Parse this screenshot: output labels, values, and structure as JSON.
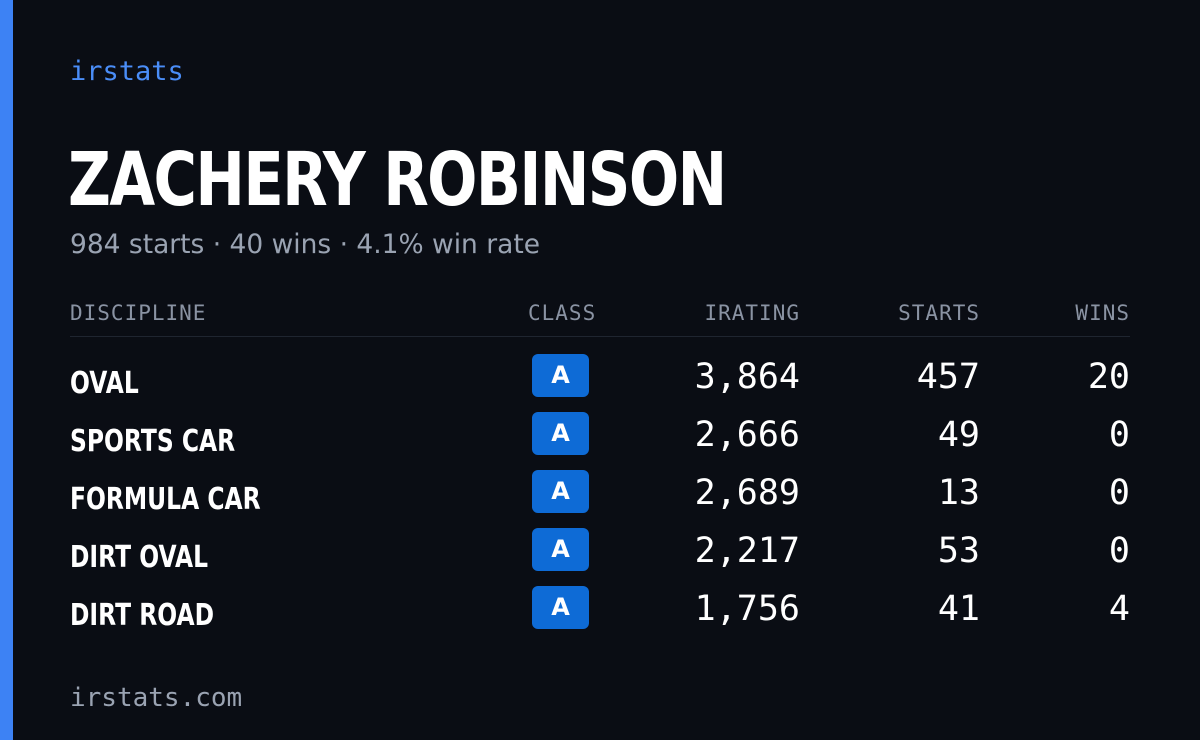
{
  "brand": "irstats",
  "player": {
    "name": "ZACHERY ROBINSON",
    "summary": "984 starts · 40 wins · 4.1% win rate"
  },
  "table": {
    "headers": {
      "discipline": "DISCIPLINE",
      "class": "CLASS",
      "irating": "IRATING",
      "starts": "STARTS",
      "wins": "WINS"
    },
    "rows": [
      {
        "discipline": "OVAL",
        "class": "A",
        "irating": "3,864",
        "starts": "457",
        "wins": "20"
      },
      {
        "discipline": "SPORTS CAR",
        "class": "A",
        "irating": "2,666",
        "starts": "49",
        "wins": "0"
      },
      {
        "discipline": "FORMULA CAR",
        "class": "A",
        "irating": "2,689",
        "starts": "13",
        "wins": "0"
      },
      {
        "discipline": "DIRT OVAL",
        "class": "A",
        "irating": "2,217",
        "starts": "53",
        "wins": "0"
      },
      {
        "discipline": "DIRT ROAD",
        "class": "A",
        "irating": "1,756",
        "starts": "41",
        "wins": "4"
      }
    ]
  },
  "footer": "irstats.com",
  "colors": {
    "background": "#0a0d14",
    "accent": "#3d82f4",
    "class_badge": "#0e6bd6"
  }
}
